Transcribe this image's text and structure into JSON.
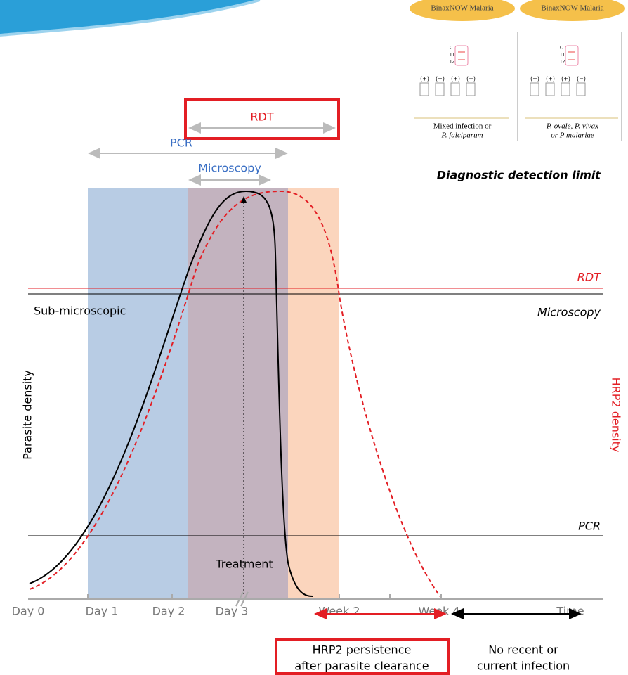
{
  "rdt_cards": [
    {
      "brand": "BinaxNOW Malaria",
      "caption": [
        "Mixed infection or",
        "P. falciparum"
      ]
    },
    {
      "brand": "BinaxNOW Malaria",
      "caption": [
        "P. ovale, P. vivax",
        "or P malariae"
      ]
    }
  ],
  "strip_labels": [
    "C",
    "T1",
    "T2"
  ],
  "control_labels": [
    "(+)",
    "(+)",
    "(+)",
    "(−)"
  ],
  "detection_limit_title": "Diagnostic detection limit",
  "windows": {
    "rdt": "RDT",
    "pcr": "PCR",
    "microscopy": "Microscopy"
  },
  "limits": {
    "rdt": "RDT",
    "microscopy": "Microscopy",
    "pcr": "PCR",
    "sub_microscopic": "Sub-microscopic"
  },
  "axes": {
    "left": "Parasite density",
    "right": "HRP2 density",
    "ticks": [
      "Day 0",
      "Day 1",
      "Day 2",
      "Day 3",
      "Week 2",
      "Week 4",
      "Time"
    ]
  },
  "treatment": "Treatment",
  "periods": {
    "persistence": [
      "HRP2 persistence",
      "after parasite clearance"
    ],
    "no_infection": [
      "No recent or",
      "current infection"
    ]
  }
}
